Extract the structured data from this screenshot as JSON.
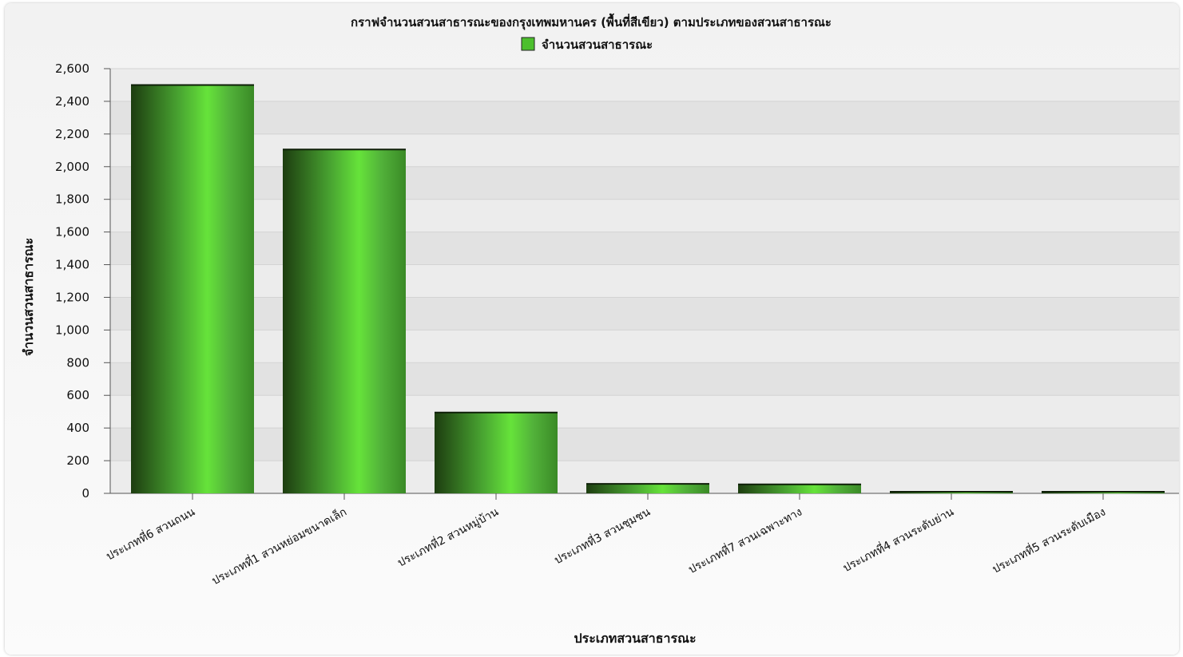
{
  "chart_data": {
    "type": "bar",
    "title": "กราฟจำนวนสวนสาธารณะของกรุงเทพมหานคร (พื้นที่สีเขียว) ตามประเภทของสวนสาธารณะ",
    "xlabel": "ประเภทสวนสาธารณะ",
    "ylabel": "จำนวนสวนสาธารณะ",
    "ylim": [
      0,
      2600
    ],
    "yticks": [
      0,
      200,
      400,
      600,
      800,
      1000,
      1200,
      1400,
      1600,
      1800,
      2000,
      2200,
      2400,
      2600
    ],
    "ytick_labels": [
      "0",
      "200",
      "400",
      "600",
      "800",
      "1,000",
      "1,200",
      "1,400",
      "1,600",
      "1,800",
      "2,000",
      "2,200",
      "2,400",
      "2,600"
    ],
    "categories": [
      "ประเภทที่6 สวนถนน",
      "ประเภทที่1 สวนหย่อมขนาดเล็ก",
      "ประเภทที่2 สวนหมู่บ้าน",
      "ประเภทที่3 สวนชุมชน",
      "ประเภทที่7 สวนเฉพาะทาง",
      "ประเภทที่4 สวนระดับย่าน",
      "ประเภทที่5 สวนระดับเมือง"
    ],
    "series": [
      {
        "name": "จำนวนสวนสาธารณะ",
        "values": [
          2500,
          2105,
          495,
          58,
          55,
          10,
          3
        ]
      }
    ],
    "legend_position": "top-center",
    "grid": true,
    "colors": {
      "bar_dark": "#1d3d10",
      "bar_mid": "#3e9a2a",
      "bar_light": "#66e33a",
      "bar_edge": "#3a8a26",
      "legend_swatch": "#4cbf2d"
    }
  }
}
